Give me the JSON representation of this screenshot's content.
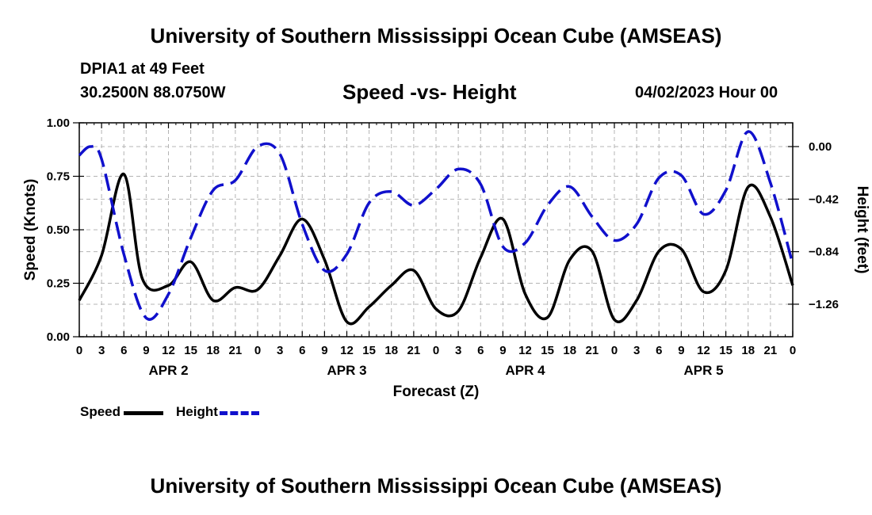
{
  "header": {
    "title": "University of Southern Mississippi Ocean Cube (AMSEAS)",
    "station": "DPIA1 at 49 Feet",
    "coordinates": "30.2500N  88.0750W",
    "chart_title": "Speed -vs- Height",
    "date_stamp": "04/02/2023 Hour 00"
  },
  "footer": {
    "title": "University of Southern Mississippi Ocean Cube (AMSEAS)"
  },
  "legend": {
    "speed_label": "Speed",
    "height_label": "Height"
  },
  "colors": {
    "speed": "#000000",
    "height": "#1010cc",
    "grid": "#b4b4b4"
  },
  "chart_data": {
    "type": "line",
    "title": "Speed -vs- Height",
    "xlabel": "Forecast (Z)",
    "ylabel": "Speed (Knots)",
    "y2label": "Height (feet)",
    "xlim": [
      0,
      96
    ],
    "ylim": [
      0,
      1
    ],
    "y2lim": [
      -1.52,
      0.19
    ],
    "x_ticks": [
      0,
      3,
      6,
      9,
      12,
      15,
      18,
      21,
      24,
      27,
      30,
      33,
      36,
      39,
      42,
      45,
      48,
      51,
      54,
      57,
      60,
      63,
      66,
      69,
      72,
      75,
      78,
      81,
      84,
      87,
      90,
      93,
      96
    ],
    "x_tick_labels": [
      "0",
      "3",
      "6",
      "9",
      "12",
      "15",
      "18",
      "21",
      "0",
      "3",
      "6",
      "9",
      "12",
      "15",
      "18",
      "21",
      "0",
      "3",
      "6",
      "9",
      "12",
      "15",
      "18",
      "21",
      "0",
      "3",
      "6",
      "9",
      "12",
      "15",
      "18",
      "21",
      "0"
    ],
    "day_labels": [
      {
        "label": "APR 2",
        "x": 12
      },
      {
        "label": "APR 3",
        "x": 36
      },
      {
        "label": "APR 4",
        "x": 60
      },
      {
        "label": "APR 5",
        "x": 84
      }
    ],
    "y_ticks": [
      0,
      0.25,
      0.5,
      0.75,
      1.0
    ],
    "y_tick_labels": [
      "0.00",
      "0.25",
      "0.50",
      "0.75",
      "1.00"
    ],
    "y2_ticks": [
      0,
      -0.42,
      -0.84,
      -1.26
    ],
    "y2_tick_labels": [
      "0.00",
      "−0.42",
      "−0.84",
      "−1.26"
    ],
    "series": [
      {
        "name": "Speed",
        "axis": "left",
        "style": "solid",
        "x": [
          0,
          3,
          6,
          8.5,
          12,
          15,
          18,
          21,
          24,
          27,
          30,
          33,
          36,
          39,
          42,
          45,
          48,
          51,
          54,
          57,
          60,
          63,
          66,
          69,
          72,
          75,
          78,
          81,
          84,
          87,
          90,
          93,
          96
        ],
        "values": [
          0.17,
          0.38,
          0.76,
          0.27,
          0.24,
          0.35,
          0.17,
          0.23,
          0.22,
          0.38,
          0.55,
          0.36,
          0.07,
          0.14,
          0.24,
          0.31,
          0.13,
          0.12,
          0.37,
          0.55,
          0.2,
          0.09,
          0.36,
          0.4,
          0.08,
          0.17,
          0.4,
          0.41,
          0.21,
          0.31,
          0.7,
          0.56,
          0.24
        ]
      },
      {
        "name": "Height",
        "axis": "right",
        "style": "dashed",
        "x": [
          0,
          1.5,
          3,
          6,
          9,
          12,
          15,
          18,
          21,
          24,
          27,
          30,
          33,
          36,
          39,
          42,
          45,
          48,
          51,
          54,
          57,
          60,
          63,
          66,
          69,
          72,
          75,
          78,
          81,
          84,
          87,
          90,
          93,
          96
        ],
        "values": [
          -0.07,
          0.0,
          -0.1,
          -0.86,
          -1.37,
          -1.18,
          -0.73,
          -0.35,
          -0.27,
          0.0,
          -0.06,
          -0.62,
          -0.99,
          -0.86,
          -0.45,
          -0.36,
          -0.47,
          -0.34,
          -0.18,
          -0.3,
          -0.8,
          -0.77,
          -0.47,
          -0.32,
          -0.56,
          -0.75,
          -0.62,
          -0.25,
          -0.23,
          -0.54,
          -0.35,
          0.12,
          -0.29,
          -0.94
        ]
      }
    ]
  }
}
